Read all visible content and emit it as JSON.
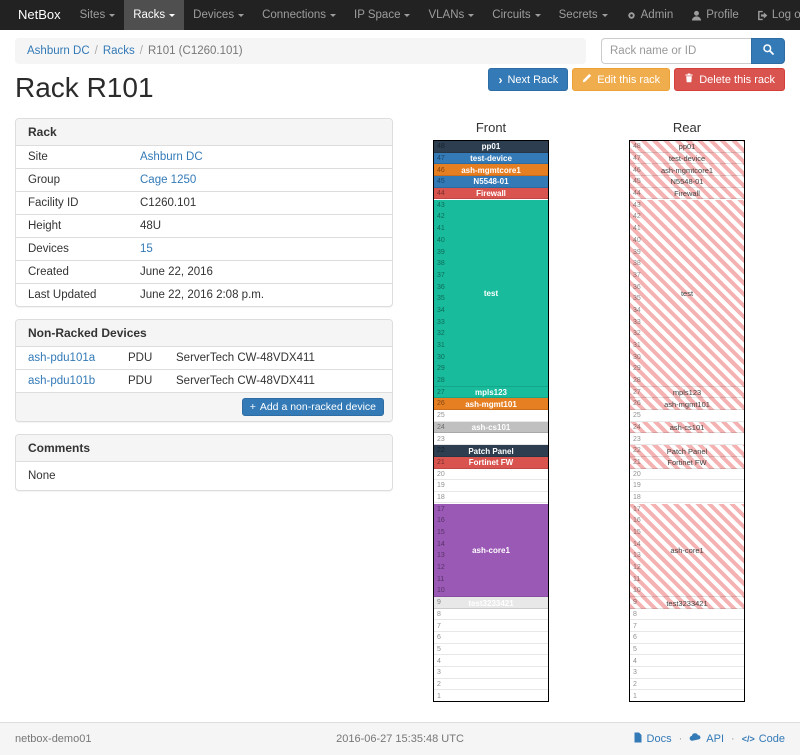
{
  "navbar": {
    "brand": "NetBox",
    "items": [
      {
        "label": "Sites",
        "active": false
      },
      {
        "label": "Racks",
        "active": true
      },
      {
        "label": "Devices",
        "active": false
      },
      {
        "label": "Connections",
        "active": false
      },
      {
        "label": "IP Space",
        "active": false
      },
      {
        "label": "VLANs",
        "active": false
      },
      {
        "label": "Circuits",
        "active": false
      },
      {
        "label": "Secrets",
        "active": false
      }
    ],
    "right_items": [
      {
        "label": "Admin",
        "icon": "gear-icon"
      },
      {
        "label": "Profile",
        "icon": "user-icon"
      },
      {
        "label": "Log out",
        "icon": "log-out-icon"
      }
    ]
  },
  "breadcrumb": [
    {
      "label": "Ashburn DC",
      "is_link": true
    },
    {
      "label": "Racks",
      "is_link": true
    },
    {
      "label": "R101 (C1260.101)",
      "is_link": false
    }
  ],
  "search": {
    "placeholder": "Rack name or ID"
  },
  "actions": {
    "next": "Next Rack",
    "edit": "Edit this rack",
    "delete": "Delete this rack"
  },
  "page_title": "Rack R101",
  "rack_info": {
    "title": "Rack",
    "rows": [
      {
        "label": "Site",
        "value": "Ashburn DC",
        "is_link": true
      },
      {
        "label": "Group",
        "value": "Cage 1250",
        "is_link": true
      },
      {
        "label": "Facility ID",
        "value": "C1260.101",
        "is_link": false
      },
      {
        "label": "Height",
        "value": "48U",
        "is_link": false
      },
      {
        "label": "Devices",
        "value": "15",
        "is_link": true
      },
      {
        "label": "Created",
        "value": "June 22, 2016",
        "is_link": false
      },
      {
        "label": "Last Updated",
        "value": "June 22, 2016 2:08 p.m.",
        "is_link": false
      }
    ]
  },
  "non_racked": {
    "title": "Non-Racked Devices",
    "devices": [
      {
        "name": "ash-pdu101a",
        "type": "PDU",
        "model": "ServerTech CW-48VDX411"
      },
      {
        "name": "ash-pdu101b",
        "type": "PDU",
        "model": "ServerTech CW-48VDX411"
      }
    ],
    "add_button": "Add a non-racked device"
  },
  "comments": {
    "title": "Comments",
    "body": "None"
  },
  "elevation": {
    "front_title": "Front",
    "rear_title": "Rear",
    "units": 48,
    "stripe_color": "#f5b2b2",
    "devices": [
      {
        "unit": 48,
        "size": 1,
        "name": "pp01",
        "color": "#2c3e50"
      },
      {
        "unit": 47,
        "size": 1,
        "name": "test-device",
        "color": "#337ab7"
      },
      {
        "unit": 46,
        "size": 1,
        "name": "ash-mgmtcore1",
        "color": "#e67e22"
      },
      {
        "unit": 45,
        "size": 1,
        "name": "N5548-01",
        "color": "#337ab7"
      },
      {
        "unit": 44,
        "size": 1,
        "name": "Firewall",
        "color": "#d9534f"
      },
      {
        "unit": 43,
        "size": 16,
        "name": "test",
        "color": "#18bc9c"
      },
      {
        "unit": 27,
        "size": 1,
        "name": "mpls123",
        "color": "#18bc9c"
      },
      {
        "unit": 26,
        "size": 1,
        "name": "ash-mgmt101",
        "color": "#e67e22"
      },
      {
        "unit": 24,
        "size": 1,
        "name": "ash-cs101",
        "color": "#c0c0c0"
      },
      {
        "unit": 22,
        "size": 1,
        "name": "Patch Panel",
        "color": "#2c3e50"
      },
      {
        "unit": 21,
        "size": 1,
        "name": "Fortinet FW",
        "color": "#d9534f"
      },
      {
        "unit": 17,
        "size": 8,
        "name": "ash-core1",
        "color": "#9b59b6"
      },
      {
        "unit": 9,
        "size": 1,
        "name": "test3233421",
        "color": "#e8e8e8"
      }
    ]
  },
  "footer": {
    "hostname": "netbox-demo01",
    "timestamp": "2016-06-27 15:35:48 UTC",
    "links": [
      {
        "label": "Docs",
        "icon": "docs-icon"
      },
      {
        "label": "API",
        "icon": "cloud-icon"
      },
      {
        "label": "Code",
        "icon": "code-icon",
        "glyph": "</>"
      }
    ]
  }
}
